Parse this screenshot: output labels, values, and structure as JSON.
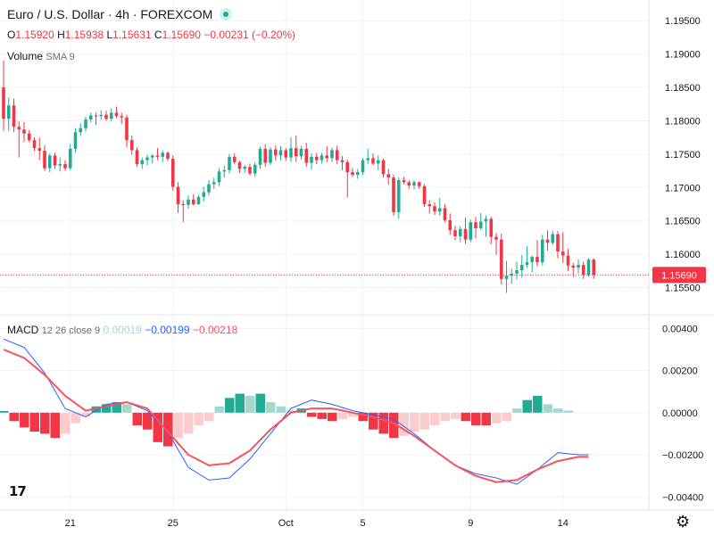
{
  "header": {
    "title": "Euro / U.S. Dollar · 4h · FOREXCOM",
    "ohlc": {
      "o_label": "O",
      "o_value": "1.15920",
      "h_label": "H",
      "h_value": "1.15938",
      "l_label": "L",
      "l_value": "1.15631",
      "c_label": "C",
      "c_value": "1.15690",
      "change": "−0.00231 (−0.20%)"
    },
    "volume_label": "Volume",
    "volume_sma": "SMA 9",
    "status_icon": "market-status-icon"
  },
  "macd_legend": {
    "name": "MACD",
    "params": "12 26 close 9",
    "hist_value": "0.00019",
    "macd_value": "−0.00199",
    "signal_value": "−0.00218"
  },
  "footer": {
    "logo_text": "17",
    "settings_icon": "gear-icon"
  },
  "colors": {
    "up": "#22ab94",
    "down": "#f23645",
    "macd": "#2962ff",
    "signal": "#f7525f",
    "hist_pos_strong": "#22ab94",
    "hist_pos_weak": "#a5d8cc",
    "hist_neg_strong": "#f23645",
    "hist_neg_weak": "#fccbcd",
    "grid": "#f0f3fa",
    "axis_text": "#131722"
  },
  "chart_data": [
    {
      "type": "candlestick",
      "title": "Euro / U.S. Dollar · 4h · FOREXCOM",
      "ylim": [
        1.152,
        1.1965
      ],
      "y_ticks": [
        "1.19500",
        "1.19000",
        "1.18500",
        "1.18000",
        "1.17500",
        "1.17000",
        "1.16500",
        "1.16000",
        "1.15500"
      ],
      "x_ticks": [
        "21",
        "25",
        "Oct",
        "5",
        "9",
        "14"
      ],
      "x_tick_index": [
        13,
        33,
        55,
        70,
        91,
        109
      ],
      "last_price_label": "1.15690",
      "last_price": 1.1569,
      "candles": [
        [
          1.185,
          1.189,
          1.1785,
          1.1803
        ],
        [
          1.1803,
          1.1835,
          1.1785,
          1.1823
        ],
        [
          1.1823,
          1.1833,
          1.1783,
          1.1791
        ],
        [
          1.1791,
          1.1799,
          1.1745,
          1.1787
        ],
        [
          1.1787,
          1.1798,
          1.1768,
          1.1781
        ],
        [
          1.1781,
          1.1786,
          1.1768,
          1.1771
        ],
        [
          1.1771,
          1.1775,
          1.1755,
          1.1759
        ],
        [
          1.1759,
          1.1775,
          1.1741,
          1.1755
        ],
        [
          1.1755,
          1.1763,
          1.1725,
          1.1729
        ],
        [
          1.1729,
          1.1751,
          1.1723,
          1.1748
        ],
        [
          1.1748,
          1.1752,
          1.1728,
          1.1733
        ],
        [
          1.1733,
          1.1745,
          1.1724,
          1.1735
        ],
        [
          1.1735,
          1.1741,
          1.1725,
          1.1729
        ],
        [
          1.1729,
          1.1765,
          1.1726,
          1.1758
        ],
        [
          1.1758,
          1.1789,
          1.1752,
          1.1783
        ],
        [
          1.1783,
          1.1796,
          1.1777,
          1.1789
        ],
        [
          1.1789,
          1.1806,
          1.1784,
          1.1802
        ],
        [
          1.1802,
          1.1812,
          1.1798,
          1.1808
        ],
        [
          1.1808,
          1.1812,
          1.1794,
          1.1807
        ],
        [
          1.1807,
          1.1816,
          1.1802,
          1.1809
        ],
        [
          1.1809,
          1.1815,
          1.18,
          1.1803
        ],
        [
          1.1803,
          1.1819,
          1.1799,
          1.1812
        ],
        [
          1.1812,
          1.1821,
          1.1804,
          1.1807
        ],
        [
          1.1807,
          1.1812,
          1.1795,
          1.1805
        ],
        [
          1.1805,
          1.1809,
          1.176,
          1.1771
        ],
        [
          1.1771,
          1.1778,
          1.1749,
          1.1756
        ],
        [
          1.1756,
          1.176,
          1.1731,
          1.1735
        ],
        [
          1.1735,
          1.1745,
          1.1728,
          1.1741
        ],
        [
          1.1741,
          1.1749,
          1.1733,
          1.1745
        ],
        [
          1.1745,
          1.175,
          1.1736,
          1.1748
        ],
        [
          1.1748,
          1.1759,
          1.1741,
          1.1746
        ],
        [
          1.1746,
          1.1756,
          1.1738,
          1.1752
        ],
        [
          1.1752,
          1.1754,
          1.174,
          1.1743
        ],
        [
          1.1743,
          1.1748,
          1.1695,
          1.1701
        ],
        [
          1.1701,
          1.1708,
          1.1662,
          1.1675
        ],
        [
          1.1675,
          1.1681,
          1.1648,
          1.1674
        ],
        [
          1.1674,
          1.1688,
          1.1668,
          1.1682
        ],
        [
          1.1682,
          1.169,
          1.1673,
          1.1675
        ],
        [
          1.1675,
          1.1689,
          1.1674,
          1.1686
        ],
        [
          1.1686,
          1.1701,
          1.1679,
          1.1693
        ],
        [
          1.1693,
          1.1711,
          1.1688,
          1.1705
        ],
        [
          1.1705,
          1.1715,
          1.1698,
          1.1708
        ],
        [
          1.1708,
          1.1729,
          1.1702,
          1.1724
        ],
        [
          1.1724,
          1.1733,
          1.1715,
          1.1726
        ],
        [
          1.1726,
          1.175,
          1.1721,
          1.1746
        ],
        [
          1.1746,
          1.1751,
          1.1735,
          1.1738
        ],
        [
          1.1738,
          1.174,
          1.1722,
          1.1728
        ],
        [
          1.1728,
          1.1734,
          1.1722,
          1.1731
        ],
        [
          1.1731,
          1.1736,
          1.1718,
          1.1721
        ],
        [
          1.1721,
          1.1738,
          1.1716,
          1.1734
        ],
        [
          1.1734,
          1.1761,
          1.1728,
          1.1758
        ],
        [
          1.1758,
          1.1765,
          1.1731,
          1.1737
        ],
        [
          1.1737,
          1.176,
          1.1734,
          1.1757
        ],
        [
          1.1757,
          1.1763,
          1.174,
          1.1748
        ],
        [
          1.1748,
          1.1762,
          1.1741,
          1.1756
        ],
        [
          1.1756,
          1.1759,
          1.174,
          1.1745
        ],
        [
          1.1745,
          1.1775,
          1.1738,
          1.1759
        ],
        [
          1.1759,
          1.1778,
          1.1738,
          1.1747
        ],
        [
          1.1747,
          1.1762,
          1.1742,
          1.1758
        ],
        [
          1.1758,
          1.1767,
          1.1731,
          1.1737
        ],
        [
          1.1737,
          1.1751,
          1.1727,
          1.1746
        ],
        [
          1.1746,
          1.1752,
          1.1735,
          1.1741
        ],
        [
          1.1741,
          1.1752,
          1.1736,
          1.1748
        ],
        [
          1.1748,
          1.1762,
          1.1738,
          1.1744
        ],
        [
          1.1744,
          1.176,
          1.1738,
          1.1756
        ],
        [
          1.1756,
          1.1763,
          1.1735,
          1.1741
        ],
        [
          1.1741,
          1.1747,
          1.1726,
          1.1738
        ],
        [
          1.1738,
          1.1742,
          1.1685,
          1.1723
        ],
        [
          1.1723,
          1.1729,
          1.1716,
          1.1719
        ],
        [
          1.1719,
          1.1728,
          1.1713,
          1.1723
        ],
        [
          1.1723,
          1.1744,
          1.1719,
          1.1741
        ],
        [
          1.1741,
          1.1758,
          1.1735,
          1.1744
        ],
        [
          1.1744,
          1.1751,
          1.1733,
          1.1736
        ],
        [
          1.1736,
          1.1748,
          1.1726,
          1.1741
        ],
        [
          1.1741,
          1.1743,
          1.1715,
          1.172
        ],
        [
          1.172,
          1.1728,
          1.1704,
          1.1715
        ],
        [
          1.1715,
          1.1719,
          1.1658,
          1.1663
        ],
        [
          1.1663,
          1.1715,
          1.1653,
          1.1711
        ],
        [
          1.1711,
          1.1716,
          1.1705,
          1.1708
        ],
        [
          1.1708,
          1.1711,
          1.1698,
          1.1703
        ],
        [
          1.1703,
          1.1711,
          1.1697,
          1.1708
        ],
        [
          1.1708,
          1.1709,
          1.1698,
          1.1702
        ],
        [
          1.1702,
          1.1705,
          1.1671,
          1.1675
        ],
        [
          1.1675,
          1.1681,
          1.1661,
          1.1672
        ],
        [
          1.1672,
          1.1678,
          1.1659,
          1.1664
        ],
        [
          1.1664,
          1.1684,
          1.1658,
          1.1669
        ],
        [
          1.1669,
          1.1675,
          1.1648,
          1.1651
        ],
        [
          1.1651,
          1.1661,
          1.1629,
          1.1636
        ],
        [
          1.1636,
          1.1643,
          1.1621,
          1.1627
        ],
        [
          1.1627,
          1.1642,
          1.1618,
          1.1638
        ],
        [
          1.1638,
          1.1655,
          1.1616,
          1.1622
        ],
        [
          1.1622,
          1.1652,
          1.1618,
          1.1648
        ],
        [
          1.1648,
          1.1656,
          1.1624,
          1.1639
        ],
        [
          1.1639,
          1.1662,
          1.1636,
          1.1649
        ],
        [
          1.1649,
          1.1658,
          1.1626,
          1.1653
        ],
        [
          1.1653,
          1.1656,
          1.1615,
          1.1626
        ],
        [
          1.1626,
          1.1632,
          1.1599,
          1.1622
        ],
        [
          1.1622,
          1.1631,
          1.1555,
          1.1563
        ],
        [
          1.1563,
          1.159,
          1.1542,
          1.1568
        ],
        [
          1.1568,
          1.1578,
          1.1556,
          1.1571
        ],
        [
          1.1571,
          1.1589,
          1.1562,
          1.1576
        ],
        [
          1.1576,
          1.1599,
          1.1565,
          1.1584
        ],
        [
          1.1584,
          1.1612,
          1.158,
          1.1588
        ],
        [
          1.1588,
          1.1598,
          1.1573,
          1.1596
        ],
        [
          1.1596,
          1.1621,
          1.1582,
          1.1588
        ],
        [
          1.1588,
          1.1629,
          1.1583,
          1.1622
        ],
        [
          1.1622,
          1.1636,
          1.1605,
          1.1617
        ],
        [
          1.1617,
          1.1635,
          1.1614,
          1.163
        ],
        [
          1.163,
          1.1635,
          1.1594,
          1.1604
        ],
        [
          1.1604,
          1.1633,
          1.1587,
          1.1598
        ],
        [
          1.1598,
          1.1608,
          1.1575,
          1.1583
        ],
        [
          1.1583,
          1.1587,
          1.1566,
          1.158
        ],
        [
          1.158,
          1.1592,
          1.1571,
          1.1584
        ],
        [
          1.1584,
          1.1589,
          1.1563,
          1.1569
        ],
        [
          1.1569,
          1.1594,
          1.1566,
          1.1592
        ],
        [
          1.1592,
          1.1594,
          1.1563,
          1.1569
        ]
      ]
    },
    {
      "type": "line",
      "title": "MACD 12 26 close 9",
      "ylim": [
        -0.0042,
        0.0041
      ],
      "y_ticks": [
        "0.00400",
        "0.00200",
        "0.00000",
        "−0.00200",
        "−0.00400"
      ],
      "series": [
        {
          "name": "MACD",
          "points": [
            [
              0,
              0.0035
            ],
            [
              4,
              0.0031
            ],
            [
              8,
              0.0019
            ],
            [
              12,
              0.0002
            ],
            [
              16,
              -0.0002
            ],
            [
              20,
              0.0004
            ],
            [
              24,
              0.0005
            ],
            [
              28,
              0.0001
            ],
            [
              32,
              -0.0009
            ],
            [
              36,
              -0.0026
            ],
            [
              40,
              -0.0032
            ],
            [
              44,
              -0.0031
            ],
            [
              48,
              -0.0022
            ],
            [
              52,
              -0.001
            ],
            [
              56,
              0.0002
            ],
            [
              60,
              0.0006
            ],
            [
              64,
              0.0004
            ],
            [
              68,
              0.0001
            ],
            [
              72,
              -0.0001
            ],
            [
              76,
              -0.0003
            ],
            [
              80,
              -0.001
            ],
            [
              84,
              -0.0018
            ],
            [
              88,
              -0.0025
            ],
            [
              92,
              -0.0029
            ],
            [
              96,
              -0.0031
            ],
            [
              100,
              -0.0034
            ],
            [
              104,
              -0.0027
            ],
            [
              108,
              -0.0019
            ],
            [
              112,
              -0.002
            ],
            [
              114,
              -0.002
            ]
          ]
        },
        {
          "name": "Signal",
          "points": [
            [
              0,
              0.003
            ],
            [
              4,
              0.0026
            ],
            [
              8,
              0.0018
            ],
            [
              12,
              0.0008
            ],
            [
              16,
              0.0001
            ],
            [
              20,
              0.0003
            ],
            [
              24,
              0.0005
            ],
            [
              28,
              0.0002
            ],
            [
              32,
              -0.0009
            ],
            [
              36,
              -0.002
            ],
            [
              40,
              -0.0025
            ],
            [
              44,
              -0.0024
            ],
            [
              48,
              -0.0018
            ],
            [
              52,
              -0.0008
            ],
            [
              56,
              0.0
            ],
            [
              60,
              0.0002
            ],
            [
              64,
              0.0002
            ],
            [
              68,
              0.0
            ],
            [
              72,
              -0.0002
            ],
            [
              76,
              -0.0005
            ],
            [
              80,
              -0.0011
            ],
            [
              84,
              -0.0018
            ],
            [
              88,
              -0.0025
            ],
            [
              92,
              -0.003
            ],
            [
              96,
              -0.0033
            ],
            [
              100,
              -0.0032
            ],
            [
              104,
              -0.0027
            ],
            [
              108,
              -0.0023
            ],
            [
              112,
              -0.0021
            ],
            [
              114,
              -0.0021
            ]
          ]
        }
      ],
      "histogram": [
        [
          0,
          8e-05
        ],
        [
          2,
          -0.0004
        ],
        [
          4,
          -0.0007
        ],
        [
          6,
          -0.0009
        ],
        [
          8,
          -0.001
        ],
        [
          10,
          -0.0012
        ],
        [
          12,
          -0.001
        ],
        [
          14,
          -0.0005
        ],
        [
          16,
          -0.0002
        ],
        [
          18,
          0.0003
        ],
        [
          20,
          0.0004
        ],
        [
          22,
          0.0005
        ],
        [
          24,
          0.0004
        ],
        [
          26,
          -0.0006
        ],
        [
          28,
          -0.0008
        ],
        [
          30,
          -0.0014
        ],
        [
          32,
          -0.0016
        ],
        [
          34,
          -0.0012
        ],
        [
          36,
          -0.001
        ],
        [
          38,
          -0.0006
        ],
        [
          40,
          -0.0004
        ],
        [
          42,
          0.0003
        ],
        [
          44,
          0.0007
        ],
        [
          46,
          0.0009
        ],
        [
          48,
          0.0008
        ],
        [
          50,
          0.0009
        ],
        [
          52,
          0.0005
        ],
        [
          54,
          0.0003
        ],
        [
          56,
          0.0001
        ],
        [
          58,
          0.0002
        ],
        [
          60,
          -0.0002
        ],
        [
          62,
          -0.0003
        ],
        [
          64,
          -0.0004
        ],
        [
          66,
          -0.0003
        ],
        [
          68,
          -0.0002
        ],
        [
          70,
          -0.0004
        ],
        [
          72,
          -0.0008
        ],
        [
          74,
          -0.001
        ],
        [
          76,
          -0.0012
        ],
        [
          78,
          -0.0011
        ],
        [
          80,
          -0.0009
        ],
        [
          82,
          -0.0008
        ],
        [
          84,
          -0.0006
        ],
        [
          86,
          -0.0004
        ],
        [
          88,
          -0.0003
        ],
        [
          90,
          -0.0004
        ],
        [
          92,
          -0.0006
        ],
        [
          94,
          -0.0006
        ],
        [
          96,
          -0.0005
        ],
        [
          98,
          -0.0004
        ],
        [
          100,
          0.0002
        ],
        [
          102,
          0.0006
        ],
        [
          104,
          0.0008
        ],
        [
          106,
          0.0004
        ],
        [
          108,
          0.0002
        ],
        [
          110,
          0.0001
        ]
      ]
    }
  ]
}
